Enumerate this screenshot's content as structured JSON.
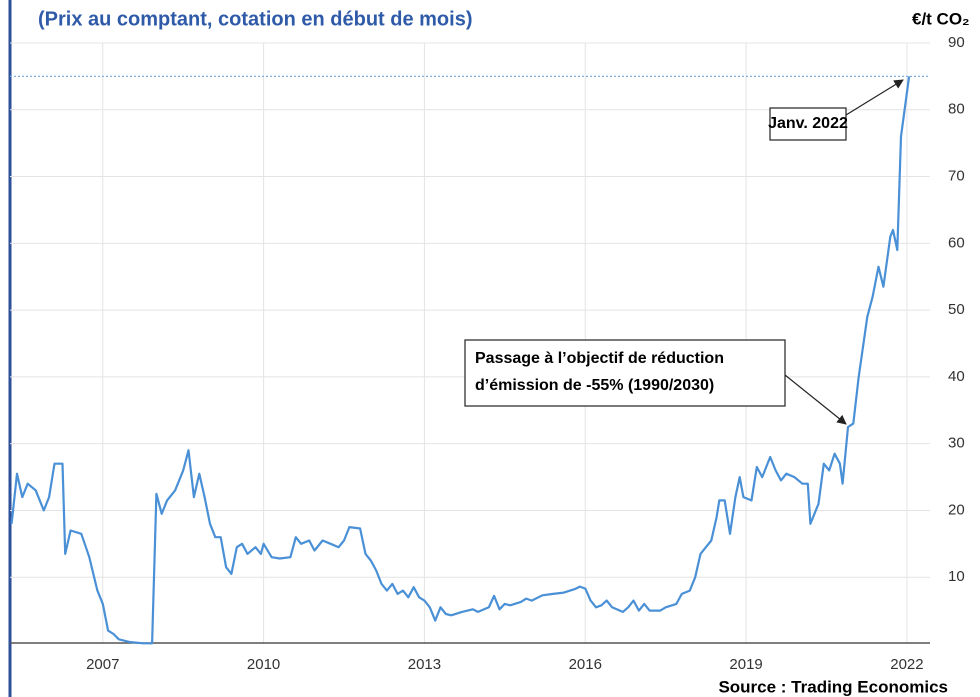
{
  "chart_data": {
    "type": "line",
    "subtitle": "(Prix au comptant, cotation en début de mois)",
    "y_unit": "€/t CO₂",
    "source": "Source : Trading Economics",
    "annotations": [
      {
        "lines": [
          "Janv. 2022"
        ]
      },
      {
        "lines": [
          "Passage à l’objectif de réduction",
          "d’émission de -55% (1990/2030)"
        ]
      }
    ],
    "reference_line": 85,
    "xlim": [
      2005.27,
      2022.43
    ],
    "xticks": [
      2007,
      2010,
      2013,
      2016,
      2019,
      2022
    ],
    "ylim": [
      0,
      90
    ],
    "yticks": [
      10,
      20,
      30,
      40,
      50,
      60,
      70,
      80,
      90
    ],
    "grid": true,
    "x": [
      2005.3,
      2005.4,
      2005.5,
      2005.6,
      2005.75,
      2005.9,
      2006.0,
      2006.1,
      2006.25,
      2006.3,
      2006.4,
      2006.6,
      2006.75,
      2006.9,
      2007.0,
      2007.1,
      2007.2,
      2007.3,
      2007.5,
      2007.75,
      2007.92,
      2008.0,
      2008.1,
      2008.2,
      2008.35,
      2008.5,
      2008.6,
      2008.7,
      2008.8,
      2008.9,
      2009.0,
      2009.1,
      2009.2,
      2009.3,
      2009.4,
      2009.5,
      2009.6,
      2009.7,
      2009.85,
      2009.95,
      2010.0,
      2010.15,
      2010.3,
      2010.5,
      2010.6,
      2010.7,
      2010.85,
      2010.95,
      2011.1,
      2011.25,
      2011.4,
      2011.5,
      2011.6,
      2011.8,
      2011.9,
      2012.0,
      2012.1,
      2012.2,
      2012.3,
      2012.4,
      2012.5,
      2012.6,
      2012.7,
      2012.8,
      2012.9,
      2013.0,
      2013.1,
      2013.2,
      2013.3,
      2013.4,
      2013.5,
      2013.7,
      2013.9,
      2014.0,
      2014.2,
      2014.3,
      2014.4,
      2014.5,
      2014.6,
      2014.8,
      2014.9,
      2015.0,
      2015.2,
      2015.4,
      2015.6,
      2015.8,
      2015.9,
      2016.0,
      2016.1,
      2016.2,
      2016.3,
      2016.4,
      2016.5,
      2016.7,
      2016.8,
      2016.9,
      2017.0,
      2017.1,
      2017.2,
      2017.4,
      2017.5,
      2017.7,
      2017.8,
      2017.95,
      2018.05,
      2018.15,
      2018.25,
      2018.35,
      2018.45,
      2018.5,
      2018.6,
      2018.7,
      2018.8,
      2018.88,
      2018.95,
      2019.1,
      2019.2,
      2019.3,
      2019.45,
      2019.55,
      2019.65,
      2019.75,
      2019.9,
      2020.05,
      2020.15,
      2020.2,
      2020.35,
      2020.45,
      2020.55,
      2020.65,
      2020.75,
      2020.8,
      2020.9,
      2021.0,
      2021.1,
      2021.26,
      2021.36,
      2021.47,
      2021.56,
      2021.69,
      2021.74,
      2021.82,
      2021.89,
      2022.04
    ],
    "series": [
      {
        "color": "#4a90d6",
        "values": [
          18,
          25.5,
          22,
          24,
          23,
          20,
          22,
          27,
          27,
          13.5,
          17,
          16.5,
          13,
          8,
          6,
          2,
          1.5,
          0.7,
          0.3,
          0.1,
          0.1,
          22.5,
          19.5,
          21.5,
          23,
          26,
          29,
          22,
          25.5,
          22,
          18,
          16,
          16,
          11.5,
          10.5,
          14.5,
          15,
          13.5,
          14.5,
          13.5,
          15,
          13,
          12.8,
          13,
          16,
          15,
          15.5,
          14,
          15.5,
          15,
          14.5,
          15.5,
          17.5,
          17.3,
          13.5,
          12.5,
          11,
          9,
          8,
          9,
          7.5,
          8,
          7,
          8.5,
          7,
          6.5,
          5.5,
          3.5,
          5.5,
          4.5,
          4.3,
          4.8,
          5.2,
          4.8,
          5.5,
          7.2,
          5.2,
          6,
          5.8,
          6.3,
          6.8,
          6.5,
          7.3,
          7.5,
          7.7,
          8.2,
          8.6,
          8.3,
          6.5,
          5.5,
          5.8,
          6.5,
          5.5,
          4.8,
          5.5,
          6.5,
          5,
          6,
          5,
          5,
          5.5,
          6,
          7.5,
          8,
          10,
          13.5,
          14.5,
          15.5,
          19,
          21.5,
          21.5,
          16.5,
          22,
          25,
          22,
          21.5,
          26.5,
          25,
          28,
          26,
          24.5,
          25.5,
          25,
          24,
          24,
          18,
          21,
          27,
          26,
          28.5,
          27,
          24,
          32.5,
          33,
          40,
          49,
          52,
          56.5,
          53.5,
          61,
          62,
          59,
          76,
          85
        ]
      }
    ]
  }
}
